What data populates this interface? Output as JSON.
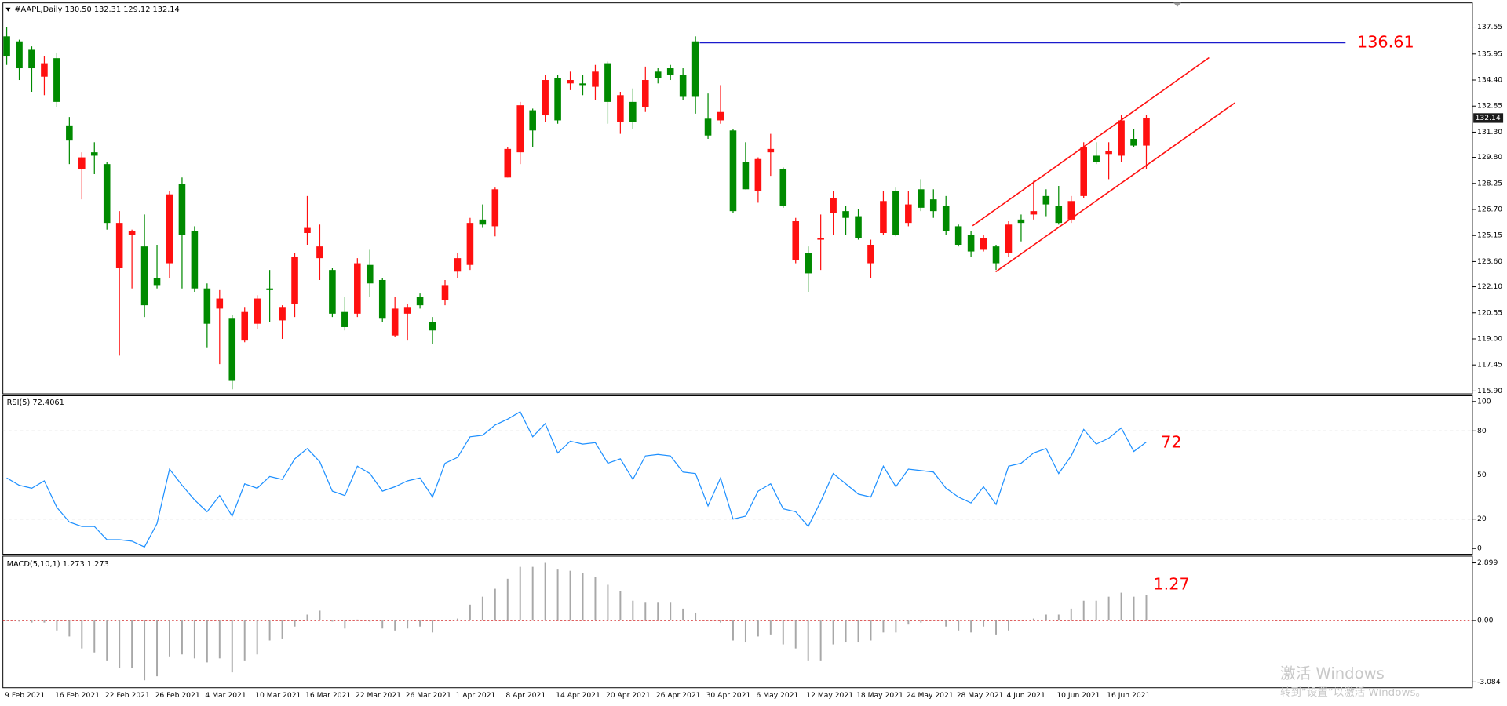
{
  "chart_data": [
    {
      "type": "candlestick",
      "title": "#AAPL,Daily  130.50 132.31 129.12 132.14",
      "categories": [
        "9 Feb 2021",
        null,
        null,
        null,
        "16 Feb 2021",
        null,
        null,
        null,
        "22 Feb 2021",
        null,
        null,
        null,
        "26 Feb 2021",
        null,
        null,
        null,
        "4 Mar 2021",
        null,
        null,
        null,
        "10 Mar 2021",
        null,
        null,
        null,
        "16 Mar 2021",
        null,
        null,
        null,
        "22 Mar 2021",
        null,
        null,
        null,
        "26 Mar 2021",
        null,
        null,
        null,
        "1 Apr 2021",
        null,
        null,
        null,
        "8 Apr 2021",
        null,
        null,
        null,
        "14 Apr 2021",
        null,
        null,
        null,
        "20 Apr 2021",
        null,
        null,
        null,
        "26 Apr 2021",
        null,
        null,
        null,
        "30 Apr 2021",
        null,
        null,
        null,
        "6 May 2021",
        null,
        null,
        null,
        "12 May 2021",
        null,
        null,
        null,
        "18 May 2021",
        null,
        null,
        null,
        "24 May 2021",
        null,
        null,
        null,
        "28 May 2021",
        null,
        null,
        null,
        "4 Jun 2021",
        null,
        null,
        null,
        "10 Jun 2021",
        null,
        null,
        null,
        "16 Jun 2021",
        null,
        null,
        null
      ],
      "open": [
        137.0,
        136.7,
        136.2,
        134.6,
        135.7,
        131.7,
        129.1,
        130.1,
        129.4,
        123.2,
        125.2,
        124.5,
        122.6,
        123.5,
        128.2,
        125.4,
        122.0,
        120.8,
        120.2,
        118.9,
        119.9,
        122.0,
        120.1,
        121.1,
        125.3,
        123.8,
        123.1,
        120.6,
        120.5,
        123.4,
        122.5,
        119.2,
        120.5,
        121.5,
        120.0,
        121.3,
        123.0,
        123.4,
        126.1,
        125.7,
        128.6,
        130.1,
        132.6,
        132.3,
        134.5,
        134.2,
        134.2,
        134.0,
        135.4,
        131.9,
        133.1,
        132.8,
        134.9,
        135.1,
        134.7,
        136.7,
        132.1,
        132.0,
        131.4,
        129.5,
        127.8,
        130.1,
        129.1,
        123.7,
        124.1,
        124.9,
        126.5,
        126.6,
        126.3,
        123.5,
        125.3,
        127.8,
        125.9,
        127.9,
        127.3,
        126.9,
        125.7,
        125.2,
        124.3,
        124.5,
        124.1,
        126.1,
        126.4,
        127.5,
        126.9,
        126.1,
        127.5,
        129.9,
        130.0,
        129.9,
        130.9,
        130.5
      ],
      "high": [
        137.55,
        136.8,
        136.4,
        135.8,
        136.0,
        132.2,
        130.1,
        130.7,
        129.5,
        126.6,
        125.5,
        126.4,
        124.6,
        127.8,
        128.6,
        125.7,
        122.3,
        121.9,
        120.4,
        120.9,
        121.6,
        123.1,
        121.0,
        124.1,
        127.5,
        125.8,
        123.2,
        121.5,
        123.8,
        124.3,
        122.6,
        121.5,
        121.1,
        121.7,
        120.3,
        122.5,
        124.1,
        126.2,
        127.0,
        128.0,
        130.4,
        133.1,
        132.7,
        134.7,
        134.7,
        134.9,
        134.7,
        135.3,
        135.5,
        133.7,
        133.9,
        135.2,
        135.1,
        135.3,
        135.1,
        137.0,
        133.6,
        134.1,
        131.5,
        130.7,
        129.8,
        131.2,
        129.2,
        126.2,
        124.5,
        126.4,
        127.8,
        126.9,
        126.7,
        124.9,
        127.8,
        128.0,
        127.8,
        128.5,
        127.9,
        127.5,
        125.8,
        125.4,
        125.2,
        124.6,
        126.0,
        126.4,
        128.4,
        127.9,
        128.1,
        127.5,
        130.7,
        130.7,
        130.7,
        132.3,
        131.5,
        132.31
      ],
      "low": [
        135.3,
        134.4,
        133.7,
        133.5,
        132.8,
        129.4,
        127.3,
        128.8,
        125.5,
        118.0,
        122.0,
        120.3,
        122.0,
        122.6,
        122.0,
        121.8,
        118.5,
        117.5,
        116.0,
        118.8,
        119.6,
        120.0,
        119.0,
        120.3,
        124.6,
        122.5,
        120.3,
        119.5,
        120.3,
        121.5,
        120.0,
        119.1,
        118.9,
        120.8,
        118.7,
        121.0,
        122.6,
        123.1,
        125.6,
        125.1,
        128.6,
        129.4,
        130.4,
        131.9,
        131.8,
        133.8,
        133.5,
        133.2,
        131.8,
        131.2,
        131.5,
        132.5,
        134.2,
        134.4,
        133.2,
        132.4,
        130.9,
        131.8,
        126.5,
        127.9,
        127.1,
        128.7,
        126.8,
        123.5,
        121.8,
        123.1,
        125.2,
        125.2,
        124.9,
        122.6,
        125.2,
        125.1,
        125.7,
        126.6,
        126.2,
        125.2,
        124.5,
        123.9,
        124.2,
        123.1,
        123.9,
        124.8,
        126.1,
        126.3,
        125.8,
        125.9,
        127.4,
        129.4,
        128.5,
        129.5,
        130.4,
        129.12
      ],
      "close": [
        135.8,
        135.1,
        135.1,
        135.4,
        133.1,
        130.8,
        129.8,
        129.9,
        125.9,
        125.9,
        125.4,
        121.0,
        122.2,
        127.6,
        125.2,
        122.0,
        119.9,
        121.4,
        116.5,
        120.6,
        121.4,
        121.9,
        120.9,
        123.9,
        125.6,
        124.5,
        120.5,
        119.7,
        123.5,
        122.3,
        120.2,
        120.8,
        120.9,
        121.0,
        119.5,
        122.2,
        123.8,
        125.9,
        125.8,
        127.9,
        130.3,
        132.9,
        131.4,
        134.4,
        132.0,
        134.4,
        134.1,
        134.9,
        133.1,
        133.5,
        131.9,
        134.4,
        134.5,
        134.7,
        133.4,
        133.4,
        131.1,
        132.5,
        126.6,
        127.9,
        129.7,
        130.3,
        126.9,
        126.0,
        122.9,
        125.0,
        127.4,
        126.2,
        125.0,
        124.6,
        127.2,
        125.2,
        127.0,
        126.8,
        126.6,
        125.4,
        124.6,
        124.2,
        125.0,
        123.5,
        125.8,
        125.9,
        126.6,
        127.0,
        125.9,
        127.2,
        130.4,
        129.5,
        130.2,
        132.0,
        130.5,
        132.14
      ],
      "up_color": "#ff1010",
      "down_color": "#008a00",
      "ylim": [
        115.73,
        138.99
      ],
      "yticks": [
        137.55,
        135.95,
        {
          "value": 134.4,
          "label": "134.40"
        },
        132.85,
        {
          "value": 131.3,
          "label": "131.30"
        },
        {
          "value": 129.8,
          "label": "129.80"
        },
        128.25,
        {
          "value": 126.7,
          "label": "126.70"
        },
        125.15,
        {
          "value": 123.6,
          "label": "123.60"
        },
        {
          "value": 122.1,
          "label": "122.10"
        },
        120.55,
        {
          "value": 119.0,
          "label": "119.00"
        },
        117.45,
        {
          "value": 115.9,
          "label": "115.90"
        }
      ],
      "current_price": 132.14,
      "level": {
        "value": 136.61,
        "color": "#1a1acc"
      },
      "annotation_color": "#ff0000"
    },
    {
      "type": "line",
      "title": "RSI(5) 72.4061",
      "values": [
        48,
        43,
        41,
        46,
        28,
        18,
        15,
        15,
        6,
        6,
        5,
        1,
        17,
        54,
        43,
        33,
        25,
        36,
        22,
        44,
        41,
        49,
        47,
        61,
        68,
        59,
        39,
        36,
        56,
        51,
        39,
        42,
        46,
        48,
        35,
        58,
        62,
        76,
        77,
        84,
        88,
        93,
        76,
        85,
        65,
        73,
        71,
        72,
        58,
        61,
        47,
        63,
        64,
        63,
        52,
        51,
        29,
        48,
        20,
        22,
        39,
        44,
        27,
        25,
        15,
        32,
        51,
        44,
        37,
        35,
        56,
        42,
        54,
        53,
        52,
        41,
        35,
        31,
        42,
        30,
        56,
        58,
        65,
        68,
        51,
        63,
        81,
        71,
        75,
        82,
        66,
        72.4061
      ],
      "color": "#1e90ff",
      "ylim": [
        -3.9,
        103.9
      ],
      "yticks": [
        0,
        20,
        50,
        80,
        100
      ],
      "annotation": 72,
      "annotation_color": "#ff0000"
    },
    {
      "type": "bar",
      "title": "MACD(5,10,1) 1.273 1.273",
      "values": [
        -0.02,
        -0.05,
        -0.1,
        -0.1,
        -0.5,
        -0.8,
        -1.4,
        -1.6,
        -2.0,
        -2.4,
        -2.4,
        -3.0,
        -2.8,
        -1.8,
        -1.7,
        -1.9,
        -2.1,
        -1.9,
        -2.6,
        -2.0,
        -1.7,
        -1.0,
        -0.9,
        -0.3,
        0.3,
        0.5,
        -0.05,
        -0.4,
        0.05,
        -0.05,
        -0.4,
        -0.5,
        -0.4,
        -0.3,
        -0.6,
        0.02,
        0.1,
        0.8,
        1.2,
        1.6,
        2.1,
        2.7,
        2.7,
        2.9,
        2.6,
        2.5,
        2.4,
        2.2,
        1.8,
        1.5,
        1.0,
        0.9,
        0.9,
        0.9,
        0.6,
        0.4,
        0.02,
        -0.1,
        -1.0,
        -1.1,
        -0.8,
        -0.7,
        -1.2,
        -1.4,
        -2.0,
        -2.0,
        -1.2,
        -1.1,
        -1.1,
        -1.0,
        -0.6,
        -0.6,
        -0.2,
        -0.1,
        0.02,
        -0.3,
        -0.5,
        -0.6,
        -0.3,
        -0.7,
        -0.5,
        0.02,
        0.1,
        0.3,
        0.3,
        0.6,
        1.0,
        1.0,
        1.2,
        1.4,
        1.2,
        1.273
      ],
      "color": "#a8a8a8",
      "zero_color": "#cc0000",
      "ylim": [
        -3.374,
        3.237
      ],
      "yticks": [
        2.899,
        {
          "value": 0,
          "label": "0.00"
        },
        -3.084
      ],
      "annotation": 1.27,
      "annotation_color": "#ff0000"
    }
  ],
  "watermark": {
    "line1": "激活 Windows",
    "line2": "转到“设置”以激活 Windows。"
  }
}
